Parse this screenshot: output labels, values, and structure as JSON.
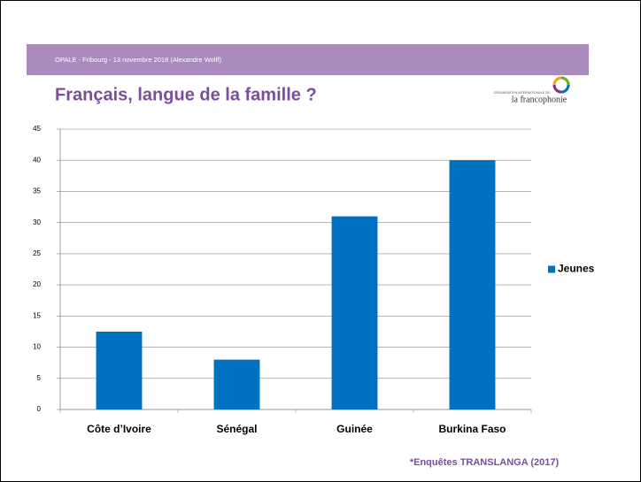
{
  "chart_data": {
    "type": "bar",
    "header": "OPALE - Fribourg - 13 novembre 2018 (Alexandre Wolff)",
    "title": "Français, langue de la famille ?",
    "logo": {
      "small": "ORGANISATION INTERNATIONALE DE",
      "name": "la francophonie"
    },
    "categories": [
      "Côte d’Ivoire",
      "Sénégal",
      "Guinée",
      "Burkina Faso"
    ],
    "series": [
      {
        "name": "Jeunes",
        "color": "#0070c0",
        "values": [
          12.5,
          8,
          31,
          40
        ]
      }
    ],
    "ylim": [
      0,
      45
    ],
    "yticks": [
      0,
      5,
      10,
      15,
      20,
      25,
      30,
      35,
      40,
      45
    ],
    "grid": true,
    "legend": "right",
    "note": "*Enquêtes TRANSLANGA (2017)"
  }
}
